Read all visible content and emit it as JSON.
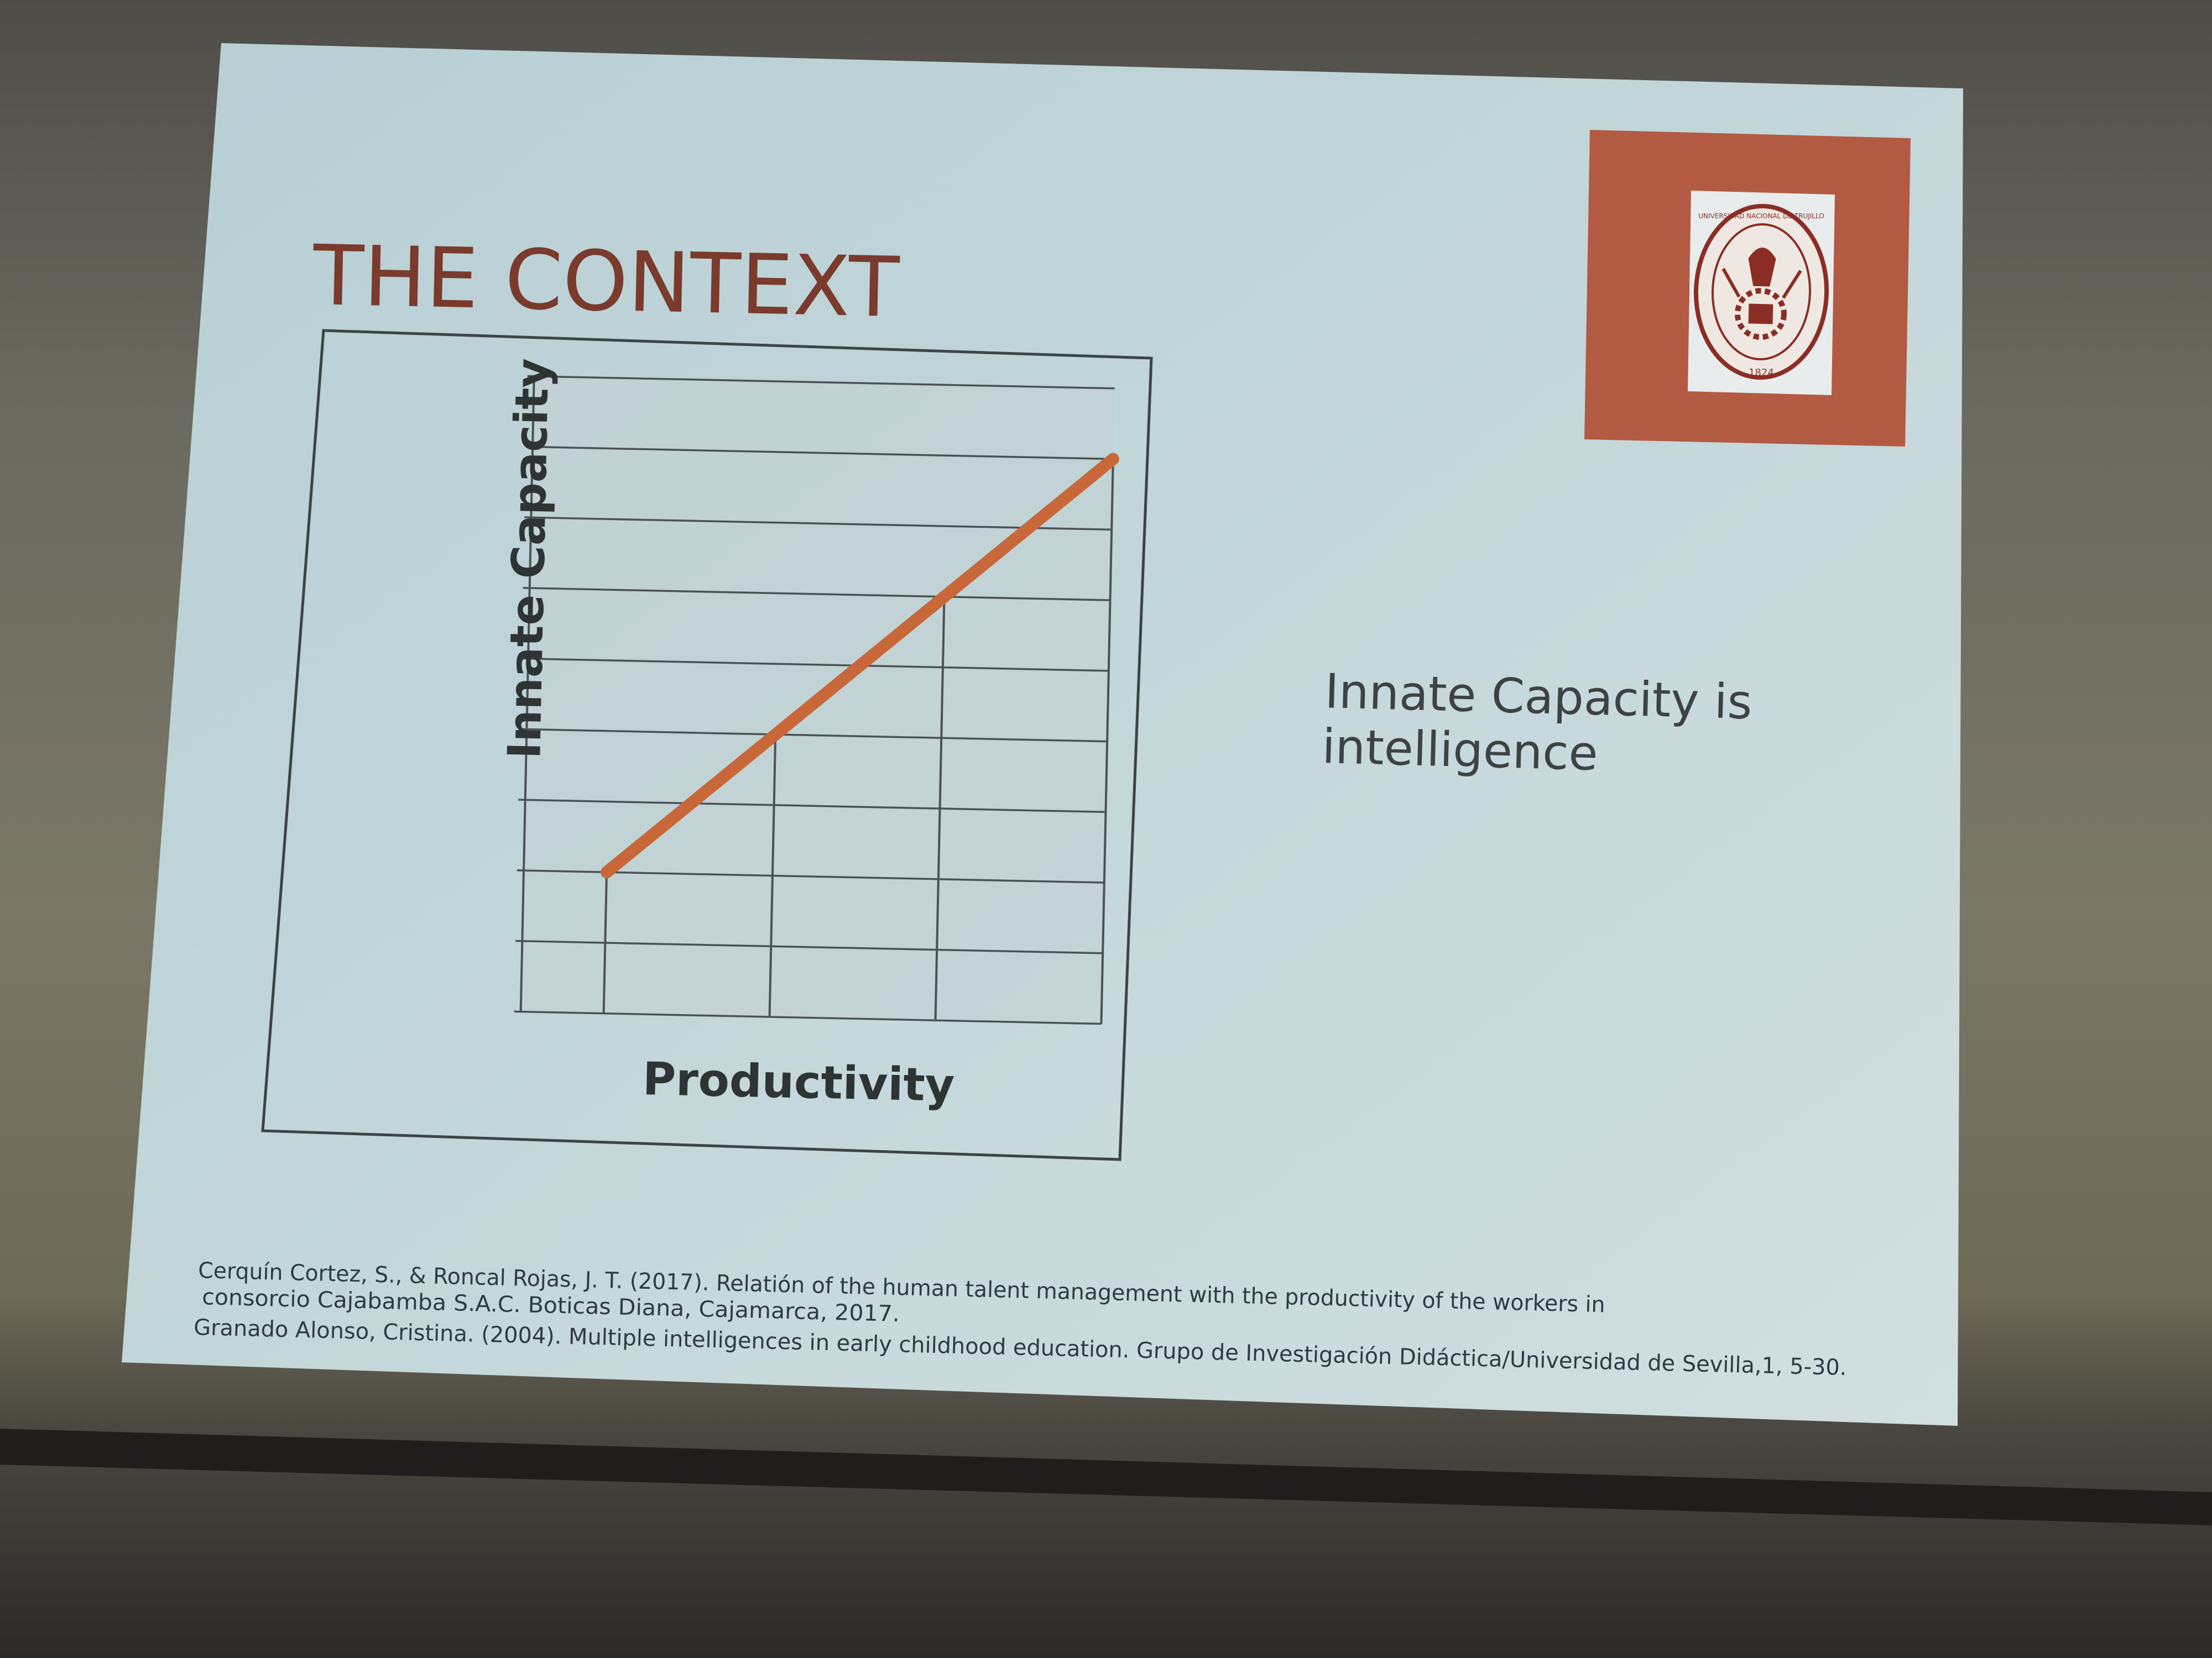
{
  "slide": {
    "title": "THE CONTEXT",
    "bullet_line1": "Innate Capacity is",
    "bullet_line2": "intelligence",
    "logo": {
      "name": "university-seal",
      "text": "UNIVERSIDAD NACIONAL DE TRUJILLO",
      "year": "1824",
      "frame_color": "#b35a43"
    },
    "accent_color": "#c8683a"
  },
  "chart_data": {
    "type": "line",
    "xlabel": "Productivity",
    "ylabel": "Innate Capacity",
    "grid": true,
    "xlim": [
      0,
      7
    ],
    "ylim": [
      0,
      9
    ],
    "series": [
      {
        "x": [
          1,
          3,
          5,
          7
        ],
        "y": [
          2,
          4,
          6,
          8
        ]
      }
    ]
  },
  "references": [
    "Cerquín Cortez, S., & Roncal Rojas, J. T. (2017). Relatión of the human talent management with the productivity of the workers in",
    "consorcio Cajabamba S.A.C. Boticas Diana, Cajamarca, 2017.",
    "Granado Alonso, Cristina. (2004). Multiple intelligences in early childhood education. Grupo de Investigación Didáctica/Universidad de Sevilla,1, 5-30."
  ]
}
